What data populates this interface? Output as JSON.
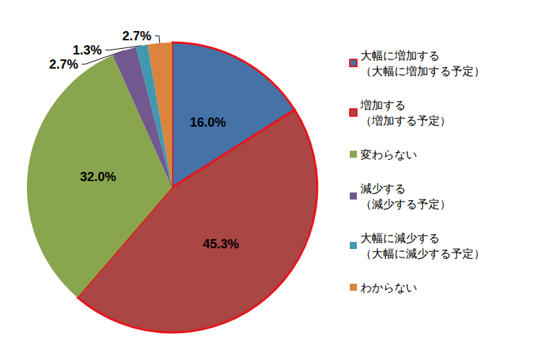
{
  "chart_data": {
    "type": "pie",
    "categories": [
      "大幅に増加する\n（大幅に増加する予定）",
      "増加する\n（増加する予定）",
      "変わらない",
      "減少する\n（減少する予定）",
      "大幅に減少する\n（大幅に減少する予定）",
      "わからない"
    ],
    "values": [
      16.0,
      45.3,
      32.0,
      2.7,
      1.3,
      2.7
    ],
    "value_labels": [
      "16.0%",
      "45.3%",
      "32.0%",
      "2.7%",
      "1.3%",
      "2.7%"
    ],
    "colors": [
      "#4572a7",
      "#aa4643",
      "#89a54e",
      "#71588f",
      "#4198af",
      "#db843d"
    ],
    "data_labels": true,
    "legend": "right"
  }
}
